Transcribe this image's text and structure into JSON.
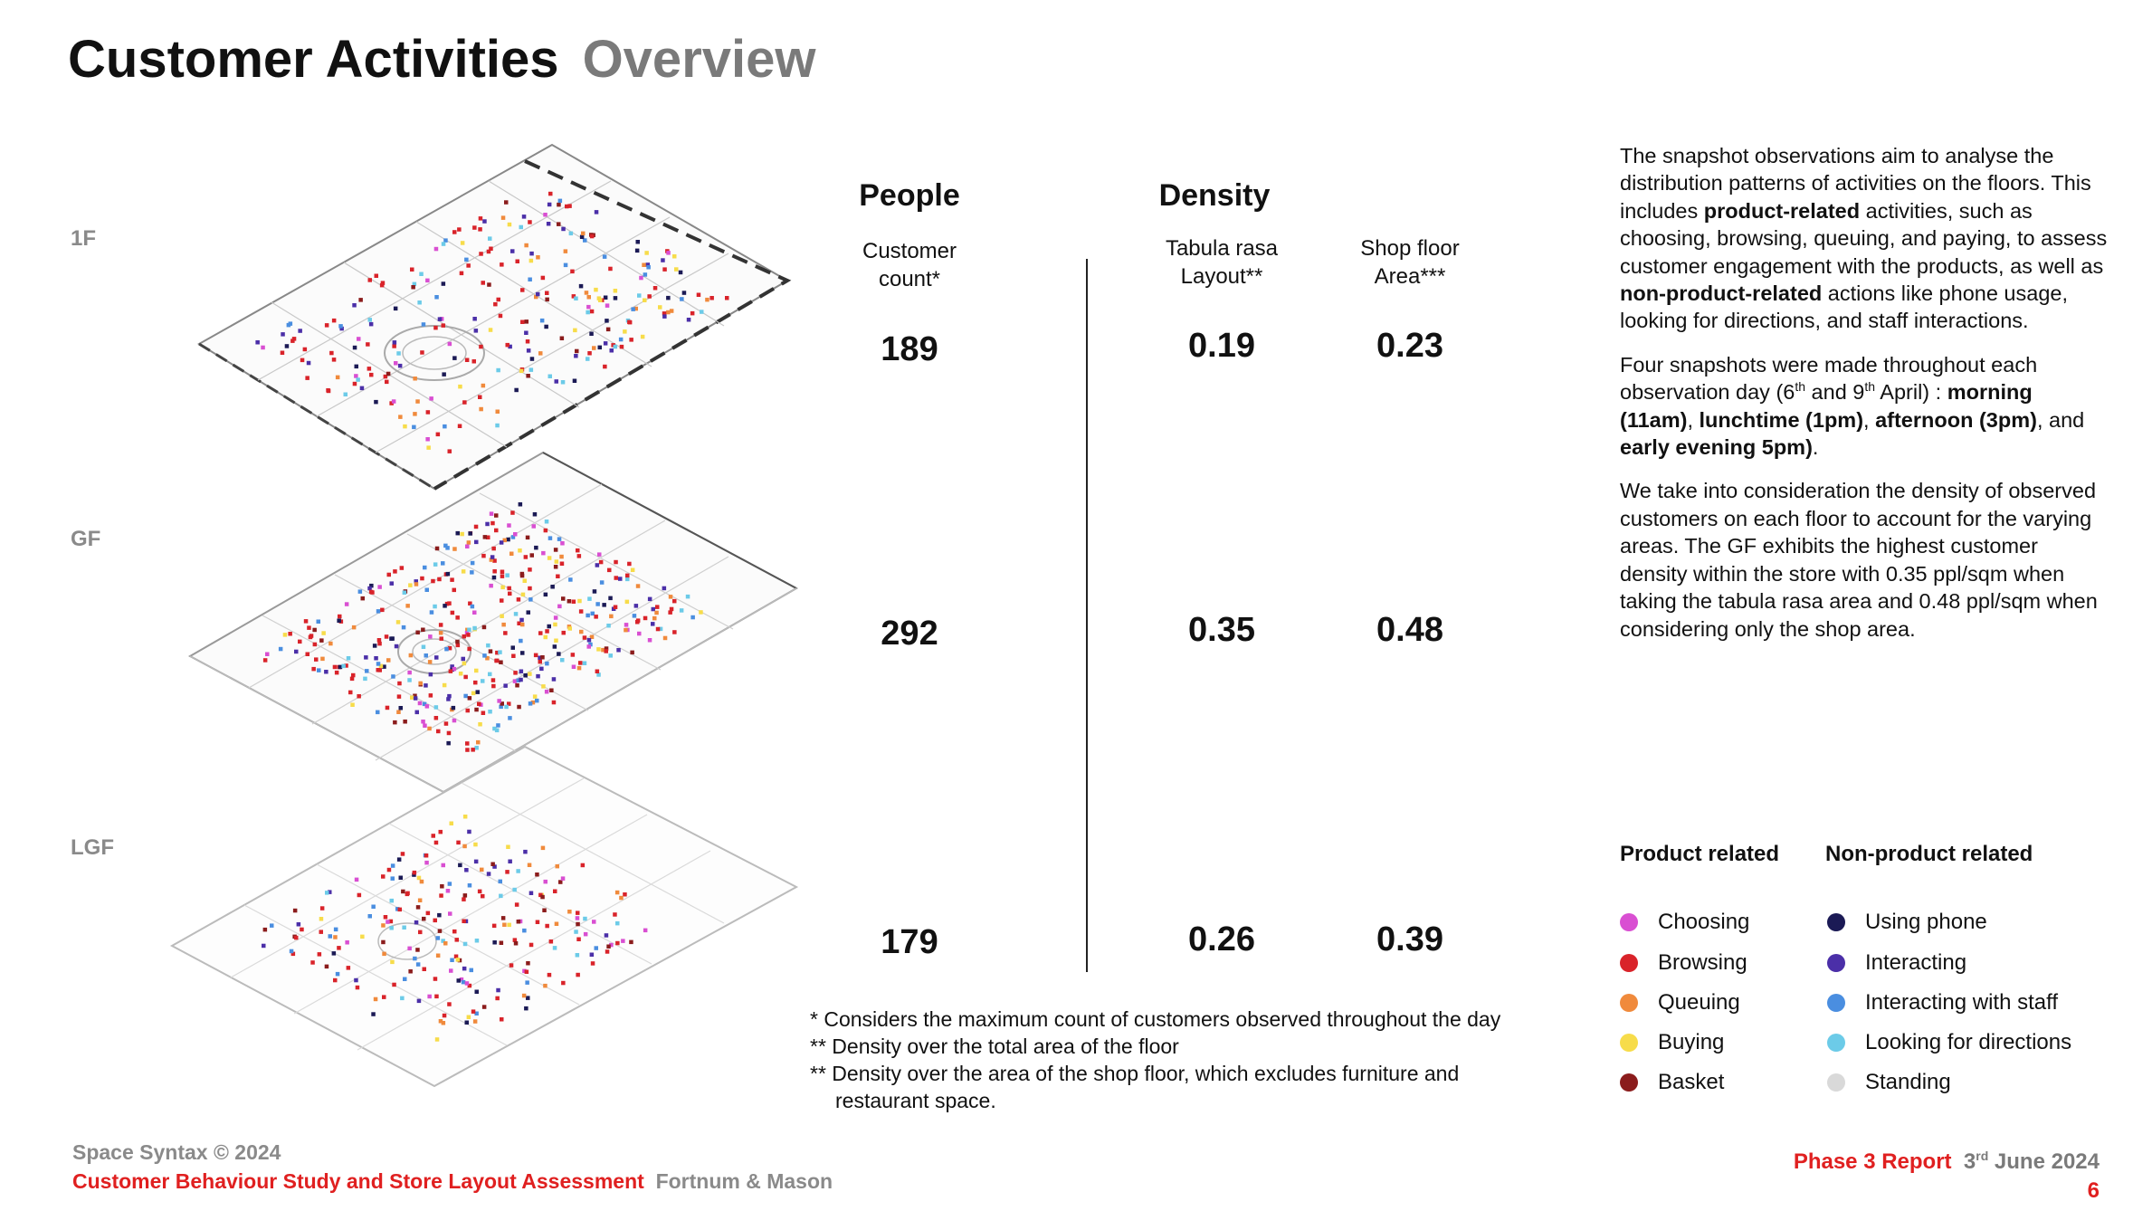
{
  "title": {
    "main": "Customer Activities",
    "sub": "Overview"
  },
  "floors": [
    {
      "label": "1F",
      "people": "189",
      "tabula": "0.19",
      "shop": "0.23"
    },
    {
      "label": "GF",
      "people": "292",
      "tabula": "0.35",
      "shop": "0.48"
    },
    {
      "label": "LGF",
      "people": "179",
      "tabula": "0.26",
      "shop": "0.39"
    }
  ],
  "columns": {
    "people_header": "People",
    "density_header": "Density",
    "customer_count": [
      "Customer",
      "count*"
    ],
    "tabula_rasa": [
      "Tabula rasa",
      "Layout**"
    ],
    "shop_floor": [
      "Shop floor",
      "Area***"
    ]
  },
  "notes": [
    "*  Considers the maximum count of customers observed throughout the day",
    "** Density over the total area of the floor",
    "** Density over the area of the shop floor, which excludes furniture and",
    "    restaurant space."
  ],
  "description": {
    "p1": {
      "a": "The snapshot observations aim to analyse the distribution patterns of activities on the floors. This includes ",
      "b1": "product-related",
      "c": " activities, such as choosing, browsing, queuing, and paying, to assess customer engagement with the products, as well as ",
      "b2": "non-product-related",
      "d": " actions like phone usage, looking for directions, and staff interactions."
    },
    "p2": {
      "a": "Four snapshots were made throughout each observation day (6",
      "sup1": "th",
      "b": " and 9",
      "sup2": "th",
      "c": " April) : ",
      "b1": "morning (11am)",
      "sep1": ", ",
      "b2": "lunchtime (1pm)",
      "sep2": ", ",
      "b3": "afternoon (3pm)",
      "sep3": ", and ",
      "b4": "early evening 5pm)",
      "end": "."
    },
    "p3": "We take into consideration the density of observed customers on each floor to account for the varying areas. The GF exhibits the highest customer density within the store with 0.35 ppl/sqm when taking the tabula rasa area and 0.48 ppl/sqm when considering only the shop area."
  },
  "legend": {
    "product_title": "Product related",
    "nonproduct_title": "Non-product related",
    "product": [
      {
        "label": "Choosing",
        "color": "#d94fd2"
      },
      {
        "label": "Browsing",
        "color": "#d9232a"
      },
      {
        "label": "Queuing",
        "color": "#f08a3c"
      },
      {
        "label": "Buying",
        "color": "#f7dc4a"
      },
      {
        "label": "Basket",
        "color": "#8b1c1c"
      }
    ],
    "nonproduct": [
      {
        "label": "Using phone",
        "color": "#1b1a55"
      },
      {
        "label": "Interacting",
        "color": "#4b2fa8"
      },
      {
        "label": "Interacting with staff",
        "color": "#4a8ee0"
      },
      {
        "label": "Looking for directions",
        "color": "#6ccbe8"
      },
      {
        "label": "Standing",
        "color": "#d9d9d9"
      }
    ]
  },
  "footer": {
    "copyright": "Space Syntax © 2024",
    "study": "Customer Behaviour Study and Store Layout Assessment",
    "client": "Fortnum & Mason",
    "report": "Phase 3 Report",
    "date_day": "3",
    "date_sup": "rd",
    "date_rest": " June 2024",
    "page": "6"
  }
}
